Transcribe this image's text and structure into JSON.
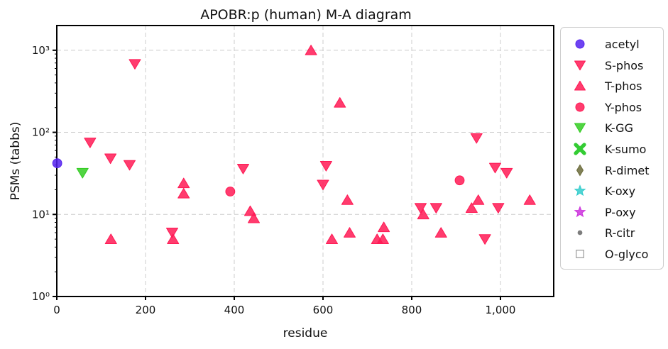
{
  "chart_data": {
    "type": "scatter",
    "title": "APOBR:p (human) M-A diagram",
    "xlabel": "residue",
    "ylabel": "PSMs (tabbs)",
    "xlim": [
      0,
      1120
    ],
    "ylim": [
      1,
      2000
    ],
    "yscale": "log",
    "grid": true,
    "legend_position": "right, outside plot",
    "x_ticks": [
      0,
      200,
      400,
      600,
      800,
      1000
    ],
    "x_tick_labels": [
      "0",
      "200",
      "400",
      "600",
      "800",
      "1,000"
    ],
    "y_ticks": [
      1,
      10,
      100,
      1000
    ],
    "y_tick_labels": [
      "10⁰",
      "10¹",
      "10²",
      "10³"
    ],
    "series": [
      {
        "name": "acetyl",
        "marker": "circle",
        "color": "#5522ee",
        "points": [
          [
            1,
            42
          ]
        ]
      },
      {
        "name": "S-phos",
        "marker": "triangle-down",
        "color": "#ff1a55",
        "points": [
          [
            176,
            680
          ],
          [
            75,
            75
          ],
          [
            121,
            48
          ],
          [
            164,
            40
          ],
          [
            420,
            36
          ],
          [
            607,
            39
          ],
          [
            600,
            23
          ],
          [
            946,
            85
          ],
          [
            988,
            37
          ],
          [
            1014,
            32
          ],
          [
            820,
            12
          ],
          [
            855,
            12
          ],
          [
            995,
            12
          ],
          [
            965,
            5
          ],
          [
            260,
            6
          ]
        ]
      },
      {
        "name": "T-phos",
        "marker": "triangle-up",
        "color": "#ff1a55",
        "points": [
          [
            573,
            1000
          ],
          [
            638,
            230
          ],
          [
            286,
            24
          ],
          [
            286,
            18
          ],
          [
            436,
            11
          ],
          [
            444,
            9
          ],
          [
            655,
            15
          ],
          [
            660,
            6
          ],
          [
            620,
            5
          ],
          [
            737,
            7
          ],
          [
            735,
            5
          ],
          [
            722,
            5
          ],
          [
            262,
            5
          ],
          [
            122,
            5
          ],
          [
            826,
            10
          ],
          [
            866,
            6
          ],
          [
            935,
            12
          ],
          [
            950,
            15
          ],
          [
            1066,
            15
          ]
        ]
      },
      {
        "name": "Y-phos",
        "marker": "circle",
        "color": "#ff1a55",
        "points": [
          [
            391,
            19
          ],
          [
            908,
            26
          ]
        ]
      },
      {
        "name": "K-GG",
        "marker": "triangle-down",
        "color": "#33cc22",
        "points": [
          [
            58,
            32
          ]
        ]
      },
      {
        "name": "K-sumo",
        "marker": "x",
        "color": "#33cc33",
        "points": []
      },
      {
        "name": "R-dimet",
        "marker": "diamond",
        "color": "#6b6b3a",
        "points": []
      },
      {
        "name": "K-oxy",
        "marker": "star",
        "color": "#33cccc",
        "points": []
      },
      {
        "name": "P-oxy",
        "marker": "star",
        "color": "#cc33dd",
        "points": []
      },
      {
        "name": "R-citr",
        "marker": "dot",
        "color": "#666666",
        "points": []
      },
      {
        "name": "O-glyco",
        "marker": "square-open",
        "color": "#999999",
        "points": []
      }
    ]
  }
}
